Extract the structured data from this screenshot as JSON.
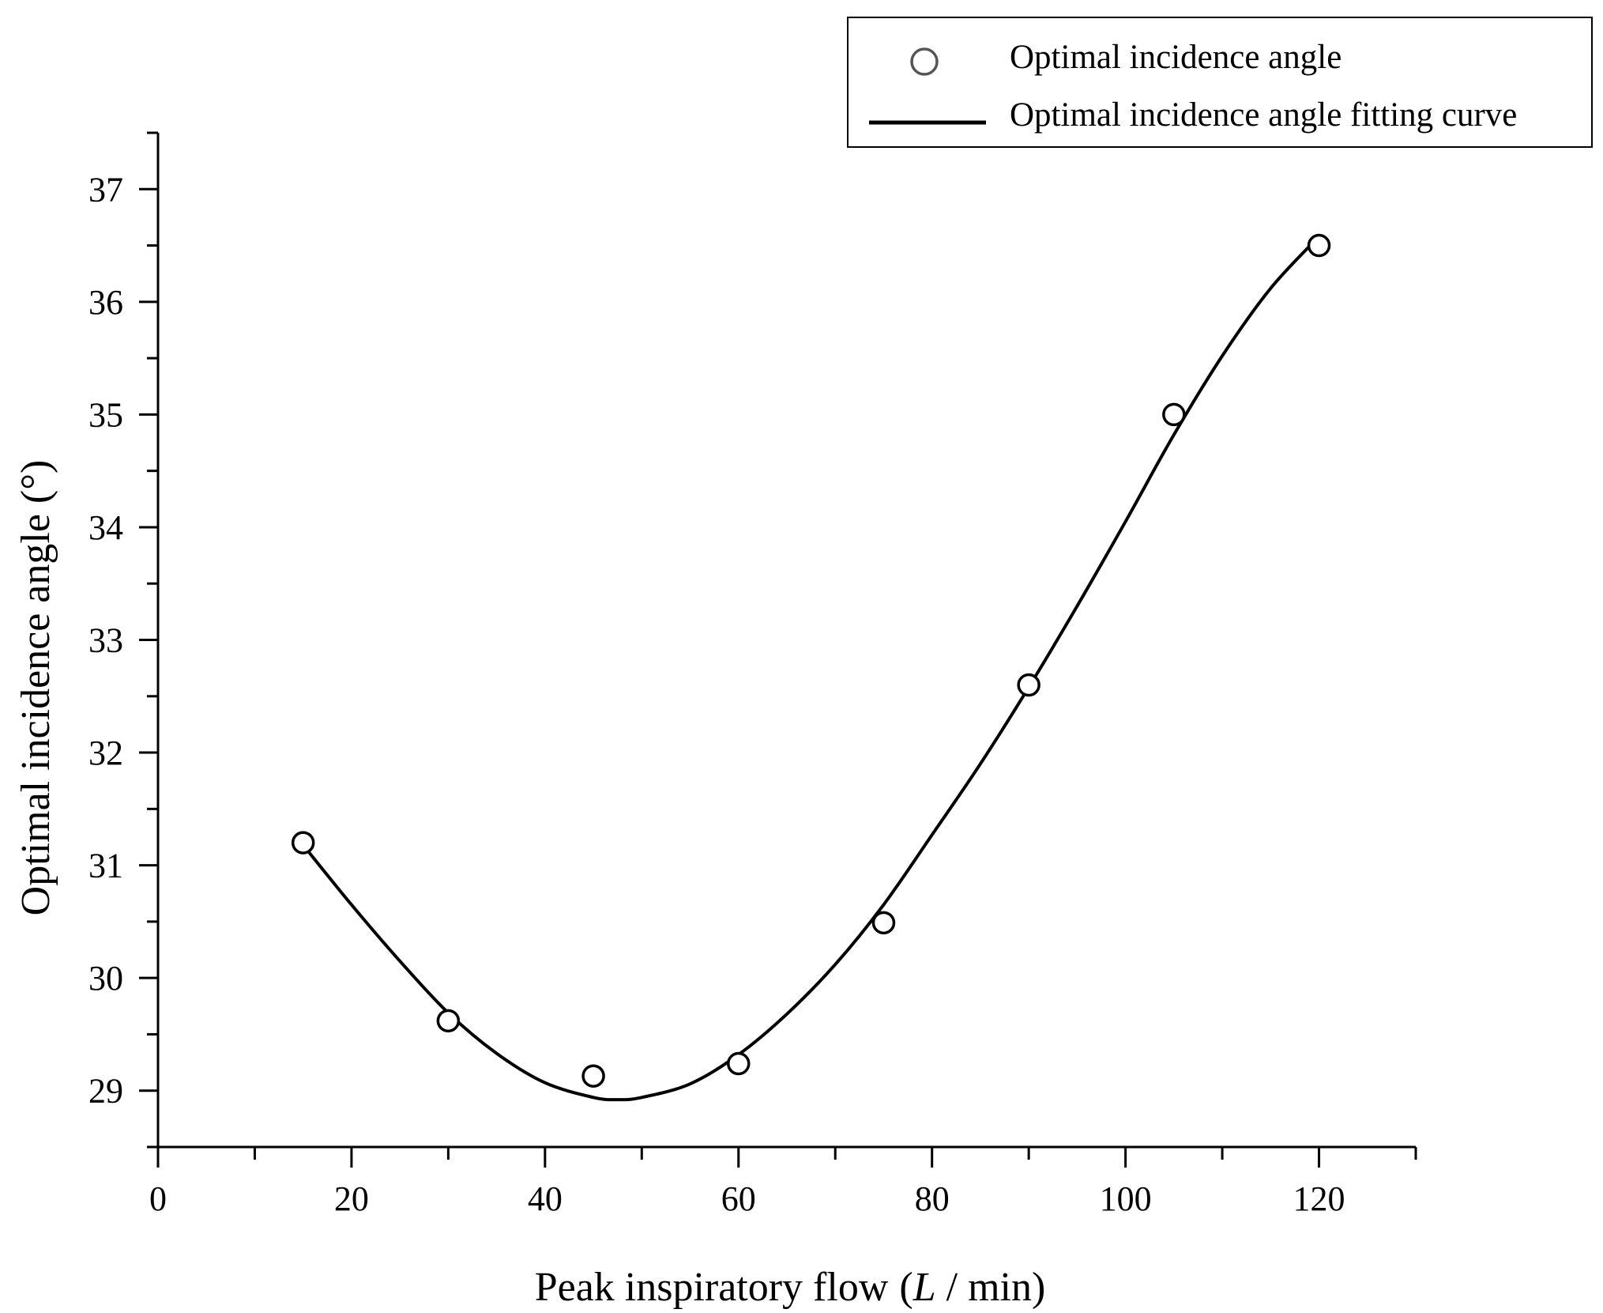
{
  "chart_data": {
    "type": "scatter",
    "title": "",
    "xlabel": {
      "prefix": "Peak inspiratory flow",
      "open": "(",
      "italic": "L",
      "unit": " / min",
      "close": ")"
    },
    "ylabel": "Optimal incidence angle (°)",
    "xlim": [
      0,
      130
    ],
    "ylim": [
      28.5,
      37.5
    ],
    "x_ticks": [
      0,
      20,
      40,
      60,
      80,
      100,
      120
    ],
    "x_minor_step": 10,
    "y_ticks": [
      29,
      30,
      31,
      32,
      33,
      34,
      35,
      36,
      37
    ],
    "y_minor_step": 0.5,
    "grid": false,
    "legend_position": "top-right",
    "series": [
      {
        "name": "Optimal incidence angle",
        "kind": "markers",
        "marker": "open-circle",
        "x": [
          15,
          30,
          45,
          60,
          75,
          90,
          105,
          120
        ],
        "y": [
          31.2,
          29.62,
          29.13,
          29.24,
          30.49,
          32.6,
          35.0,
          36.5
        ]
      },
      {
        "name": "Optimal incidence angle fitting curve",
        "kind": "line",
        "x": [
          15,
          20,
          25,
          30,
          35,
          40,
          45,
          47.5,
          50,
          55,
          60,
          65,
          70,
          75,
          80,
          85,
          90,
          95,
          100,
          105,
          110,
          115,
          120
        ],
        "y": [
          31.18,
          30.65,
          30.15,
          29.69,
          29.33,
          29.07,
          28.94,
          28.92,
          28.94,
          29.06,
          29.32,
          29.68,
          30.12,
          30.65,
          31.27,
          31.9,
          32.58,
          33.3,
          34.05,
          34.82,
          35.52,
          36.12,
          36.58
        ]
      }
    ],
    "colors": {
      "axis": "#000000",
      "marker_stroke": "#000000",
      "line": "#000000",
      "legend_marker": "#555555"
    }
  }
}
